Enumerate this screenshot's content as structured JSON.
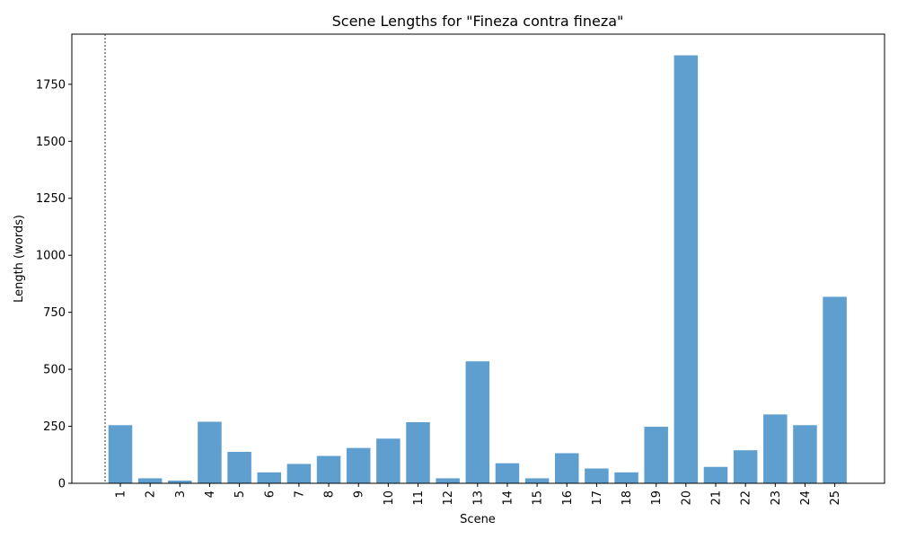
{
  "chart_data": {
    "type": "bar",
    "title": "Scene Lengths for \"Fineza contra fineza\"",
    "xlabel": "Scene",
    "ylabel": "Length (words)",
    "categories": [
      "1",
      "2",
      "3",
      "4",
      "5",
      "6",
      "7",
      "8",
      "9",
      "10",
      "11",
      "12",
      "13",
      "14",
      "15",
      "16",
      "17",
      "18",
      "19",
      "20",
      "21",
      "22",
      "23",
      "24",
      "25"
    ],
    "values": [
      255,
      22,
      12,
      270,
      138,
      48,
      85,
      120,
      155,
      196,
      268,
      22,
      535,
      88,
      22,
      132,
      65,
      48,
      248,
      1877,
      72,
      145,
      302,
      255,
      818
    ],
    "yticks": [
      0,
      250,
      500,
      750,
      1000,
      1250,
      1500,
      1750
    ],
    "ylim": [
      0,
      1970
    ],
    "bar_color": "#5f9fcf",
    "grid": false,
    "legend": "none",
    "annotations": [
      "vertical dashed line before scene 1"
    ]
  }
}
